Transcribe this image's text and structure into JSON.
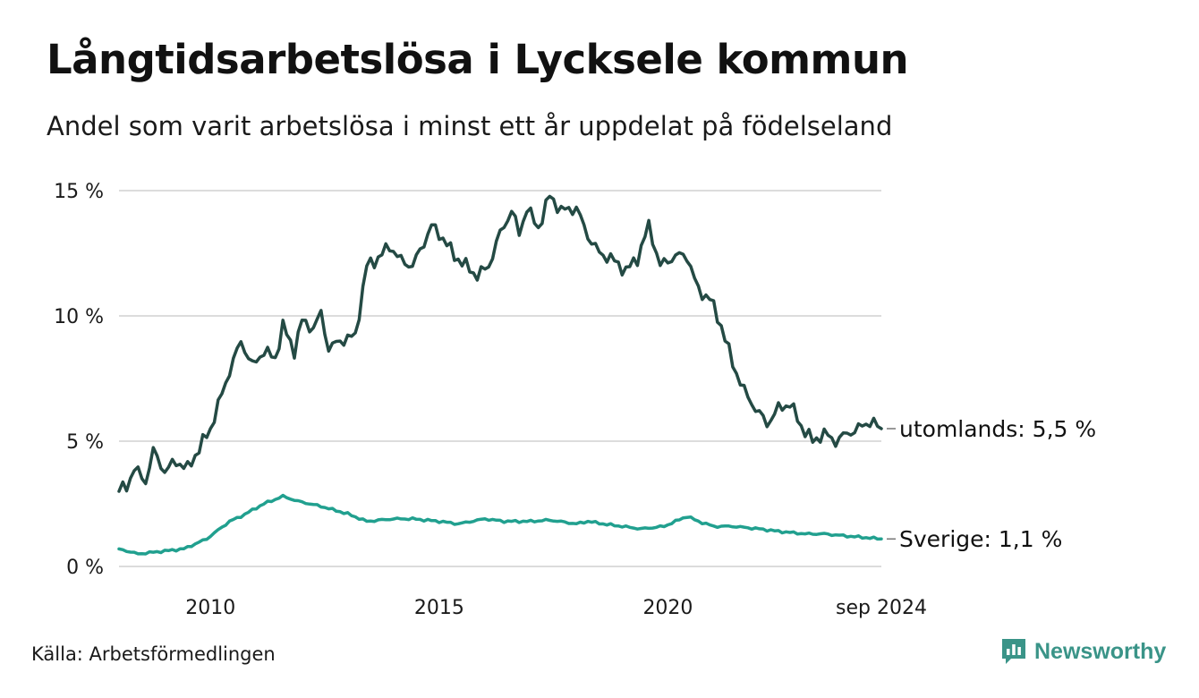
{
  "header": {
    "title": "Långtidsarbetslösa i Lycksele kommun",
    "subtitle": "Andel som varit arbetslösa i minst ett år uppdelat på födelseland"
  },
  "footer": {
    "source": "Källa: Arbetsförmedlingen",
    "brand": "Newsworthy"
  },
  "colors": {
    "utomlands": "#244a44",
    "sverige": "#21a08f",
    "grid": "#dcdcdc",
    "brand": "#3a9488"
  },
  "icons": {
    "brand_logo": "bar-chart-speech-bubble-icon"
  },
  "chart_data": {
    "type": "line",
    "x_ticks": [
      "2010",
      "2015",
      "2020",
      "sep 2024"
    ],
    "y_ticks": [
      "0 %",
      "5 %",
      "10 %",
      "15 %"
    ],
    "ylim": [
      0,
      15
    ],
    "xlim": [
      "2008-01",
      "2024-09"
    ],
    "grid": true,
    "frequency": "monthly",
    "series": [
      {
        "name": "utomlands",
        "end_label": "utomlands: 5,5 %",
        "anchors": [
          [
            "2008-01",
            3.0
          ],
          [
            "2008-03",
            3.2
          ],
          [
            "2008-05",
            3.9
          ],
          [
            "2008-08",
            3.4
          ],
          [
            "2008-10",
            4.6
          ],
          [
            "2009-01",
            3.8
          ],
          [
            "2009-04",
            4.2
          ],
          [
            "2009-07",
            3.9
          ],
          [
            "2010-01",
            5.5
          ],
          [
            "2010-06",
            7.8
          ],
          [
            "2010-09",
            9.0
          ],
          [
            "2010-12",
            8.0
          ],
          [
            "2011-03",
            8.6
          ],
          [
            "2011-06",
            8.3
          ],
          [
            "2011-08",
            9.6
          ],
          [
            "2011-11",
            8.6
          ],
          [
            "2012-01",
            9.8
          ],
          [
            "2012-04",
            9.5
          ],
          [
            "2012-06",
            10.1
          ],
          [
            "2012-08",
            8.7
          ],
          [
            "2012-11",
            9.0
          ],
          [
            "2013-03",
            9.2
          ],
          [
            "2013-06",
            12.0
          ],
          [
            "2013-09",
            12.3
          ],
          [
            "2013-12",
            12.8
          ],
          [
            "2014-03",
            12.2
          ],
          [
            "2014-06",
            12.0
          ],
          [
            "2014-08",
            12.6
          ],
          [
            "2014-11",
            13.6
          ],
          [
            "2015-02",
            13.1
          ],
          [
            "2015-05",
            12.4
          ],
          [
            "2015-08",
            12.0
          ],
          [
            "2015-11",
            11.6
          ],
          [
            "2016-02",
            12.0
          ],
          [
            "2016-05",
            13.3
          ],
          [
            "2016-08",
            14.2
          ],
          [
            "2016-10",
            13.3
          ],
          [
            "2016-12",
            14.3
          ],
          [
            "2017-03",
            13.5
          ],
          [
            "2017-06",
            14.8
          ],
          [
            "2017-09",
            14.2
          ],
          [
            "2018-01",
            14.3
          ],
          [
            "2018-04",
            13.2
          ],
          [
            "2018-07",
            12.5
          ],
          [
            "2018-10",
            12.3
          ],
          [
            "2019-02",
            11.8
          ],
          [
            "2019-05",
            12.3
          ],
          [
            "2019-08",
            13.6
          ],
          [
            "2019-11",
            12.0
          ],
          [
            "2020-03",
            12.4
          ],
          [
            "2020-06",
            12.4
          ],
          [
            "2020-09",
            11.0
          ],
          [
            "2020-12",
            10.7
          ],
          [
            "2021-03",
            9.6
          ],
          [
            "2021-06",
            8.1
          ],
          [
            "2021-09",
            7.0
          ],
          [
            "2021-12",
            6.3
          ],
          [
            "2022-03",
            5.7
          ],
          [
            "2022-06",
            6.3
          ],
          [
            "2022-09",
            6.5
          ],
          [
            "2022-12",
            5.6
          ],
          [
            "2023-03",
            5.0
          ],
          [
            "2023-06",
            5.3
          ],
          [
            "2023-09",
            5.0
          ],
          [
            "2023-12",
            5.3
          ],
          [
            "2024-03",
            5.5
          ],
          [
            "2024-06",
            5.8
          ],
          [
            "2024-09",
            5.5
          ]
        ]
      },
      {
        "name": "Sverige",
        "end_label": "Sverige: 1,1 %",
        "anchors": [
          [
            "2008-01",
            0.7
          ],
          [
            "2008-06",
            0.5
          ],
          [
            "2008-12",
            0.6
          ],
          [
            "2009-06",
            0.7
          ],
          [
            "2009-12",
            1.1
          ],
          [
            "2010-06",
            1.8
          ],
          [
            "2010-09",
            2.0
          ],
          [
            "2011-03",
            2.5
          ],
          [
            "2011-08",
            2.8
          ],
          [
            "2011-12",
            2.6
          ],
          [
            "2012-06",
            2.4
          ],
          [
            "2013-01",
            2.1
          ],
          [
            "2013-06",
            1.8
          ],
          [
            "2014-01",
            1.9
          ],
          [
            "2014-06",
            1.9
          ],
          [
            "2015-01",
            1.8
          ],
          [
            "2015-06",
            1.7
          ],
          [
            "2016-01",
            1.9
          ],
          [
            "2016-06",
            1.8
          ],
          [
            "2017-01",
            1.8
          ],
          [
            "2017-06",
            1.85
          ],
          [
            "2018-01",
            1.7
          ],
          [
            "2018-04",
            1.8
          ],
          [
            "2018-08",
            1.7
          ],
          [
            "2019-01",
            1.6
          ],
          [
            "2019-06",
            1.5
          ],
          [
            "2019-12",
            1.6
          ],
          [
            "2020-06",
            2.0
          ],
          [
            "2020-09",
            1.8
          ],
          [
            "2021-01",
            1.6
          ],
          [
            "2021-06",
            1.6
          ],
          [
            "2022-01",
            1.5
          ],
          [
            "2022-06",
            1.4
          ],
          [
            "2023-01",
            1.3
          ],
          [
            "2023-06",
            1.3
          ],
          [
            "2024-01",
            1.2
          ],
          [
            "2024-09",
            1.1
          ]
        ]
      }
    ]
  }
}
